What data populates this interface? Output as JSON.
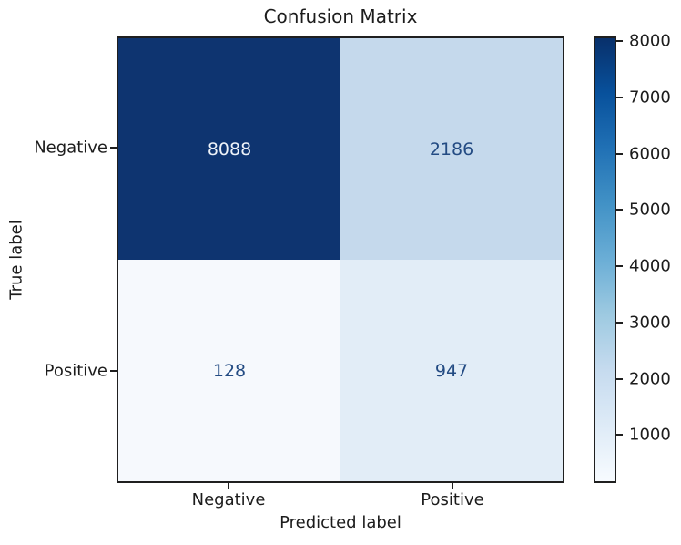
{
  "chart_data": {
    "type": "heatmap",
    "title": "Confusion Matrix",
    "xlabel": "Predicted label",
    "ylabel": "True label",
    "x_tick_labels": [
      "Negative",
      "Positive"
    ],
    "y_tick_labels": [
      "Negative",
      "Positive"
    ],
    "matrix": [
      [
        8088,
        2186
      ],
      [
        128,
        947
      ]
    ],
    "cells": [
      {
        "true": "Negative",
        "predicted": "Negative",
        "value": "8088",
        "bg": "#0e3470",
        "fg": "#edf2f9"
      },
      {
        "true": "Negative",
        "predicted": "Positive",
        "value": "2186",
        "bg": "#c5d9ec",
        "fg": "#234b83"
      },
      {
        "true": "Positive",
        "predicted": "Negative",
        "value": "128",
        "bg": "#f6f9fd",
        "fg": "#234b83"
      },
      {
        "true": "Positive",
        "predicted": "Positive",
        "value": "947",
        "bg": "#e2edf7",
        "fg": "#234b83"
      }
    ],
    "colormap": "Blues",
    "colormap_stops_top_to_bottom": [
      "#08306b",
      "#08519c",
      "#2171b5",
      "#4292c6",
      "#6baed6",
      "#9ecae1",
      "#c6dbef",
      "#deebf7",
      "#f7fbff"
    ],
    "colorbar": {
      "position": "right",
      "range": [
        128,
        8088
      ],
      "tick_labels": [
        "8000",
        "7000",
        "6000",
        "5000",
        "4000",
        "3000",
        "2000",
        "1000"
      ]
    },
    "grid": false,
    "background_color": "#ffffff",
    "spine_color": "#1f1f1f"
  }
}
